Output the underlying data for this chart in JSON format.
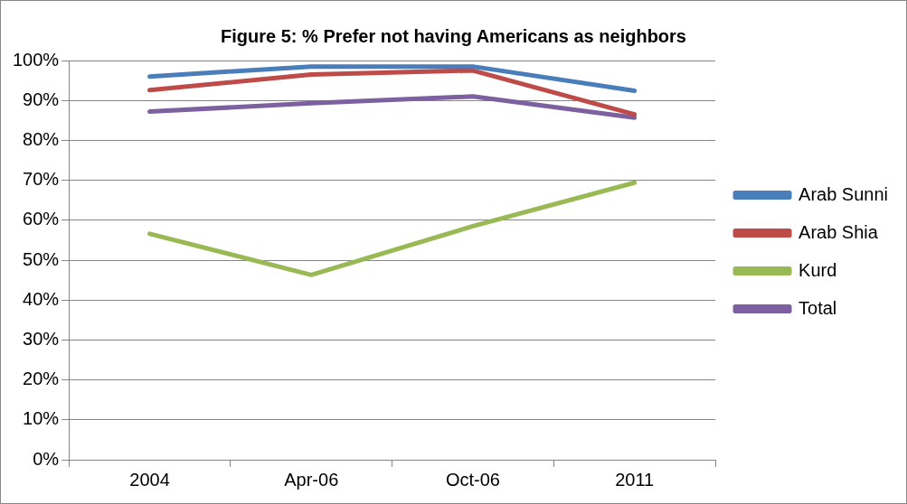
{
  "chart_data": {
    "type": "line",
    "title": "Figure 5: % Prefer not having Americans as neighbors",
    "categories": [
      "2004",
      "Apr-06",
      "Oct-06",
      "2011"
    ],
    "series": [
      {
        "name": "Arab Sunni",
        "color": "#4a7ebb",
        "values": [
          96,
          98.5,
          98.5,
          92.4
        ]
      },
      {
        "name": "Arab Shia",
        "color": "#be4b48",
        "values": [
          92.6,
          96.5,
          97.5,
          86.5
        ]
      },
      {
        "name": "Kurd",
        "color": "#98b954",
        "values": [
          56.6,
          46.3,
          58.5,
          69.4
        ]
      },
      {
        "name": "Total",
        "color": "#7d60a0",
        "values": [
          87.2,
          89.3,
          91,
          85.7
        ]
      }
    ],
    "ylim": [
      0,
      100
    ],
    "yticks": [
      {
        "value": 0,
        "label": "0%"
      },
      {
        "value": 10,
        "label": "10%"
      },
      {
        "value": 20,
        "label": "20%"
      },
      {
        "value": 30,
        "label": "30%"
      },
      {
        "value": 40,
        "label": "40%"
      },
      {
        "value": 50,
        "label": "50%"
      },
      {
        "value": 60,
        "label": "60%"
      },
      {
        "value": 70,
        "label": "70%"
      },
      {
        "value": 80,
        "label": "80%"
      },
      {
        "value": 90,
        "label": "90%"
      },
      {
        "value": 100,
        "label": "100%"
      }
    ],
    "grid": "y",
    "legend": "right",
    "marker": "none",
    "line_style": "solid"
  }
}
